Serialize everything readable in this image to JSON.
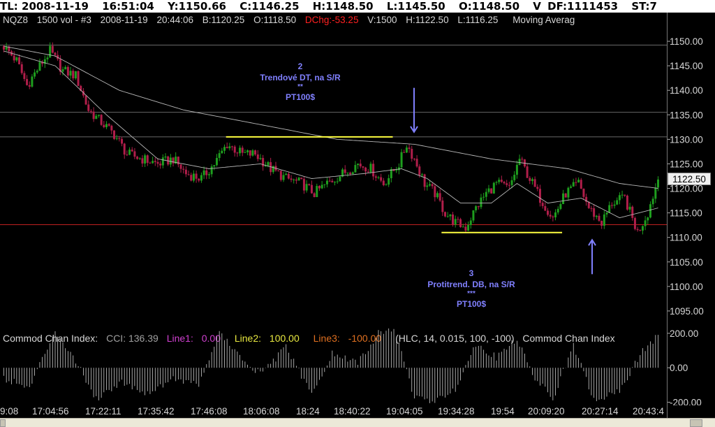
{
  "titlebar": {
    "tl": "TL: 2008-11-19",
    "time": "16:51:04",
    "y": "Y:1150.66",
    "c": "C:1146.25",
    "h": "H:1148.50",
    "l": "L:1145.50",
    "o": "O:1148.50",
    "v": "V",
    "df": "DF:1111453",
    "st": "ST:7"
  },
  "infobar": {
    "symbol": "NQZ8",
    "vol": "1500 vol - #3",
    "date": "2008-11-19",
    "time": "20:44:06",
    "bid": "B:1120.25",
    "open": "O:1118.50",
    "dchg": "DChg:-53.25",
    "volume": "V:1500",
    "high": "H:1122.50",
    "low": "L:1116.25",
    "indicator": "Moving Averag"
  },
  "price_tag": "1122.50",
  "notes": {
    "left": {
      "number": "2",
      "text": "Trendové DT, na S/R",
      "stars": "**",
      "target": "PT100$"
    },
    "right": {
      "number": "3",
      "text": "Protitrend. DB, na S/R",
      "stars": "***",
      "target": "PT100$"
    }
  },
  "cci_header": {
    "name": "Commod Chan Index:",
    "cci": "CCI: 136.39",
    "line1_label": "Line1:",
    "line1_val": "0.00",
    "line2_label": "Line2:",
    "line2_val": "100.00",
    "line3_label": "Line3:",
    "line3_val": "-100.00",
    "params": "(HLC, 14, 0.015, 100, -100)",
    "name_repeat": "Commod Chan Index"
  },
  "xaxis": [
    "9:08",
    "17:04:56",
    "17:22:11",
    "17:35:42",
    "17:46:08",
    "18:06:08",
    "18:24",
    "18:40:22",
    "19:04:05",
    "19:34:28",
    "19:54",
    "20:09:20",
    "20:27:14",
    "20:43:4"
  ],
  "colors": {
    "up": "#1e9e1e",
    "down": "#b01e4a",
    "ma": "#b8b8b8",
    "yellow": "#ffff40",
    "blue_arrow": "#8080ff",
    "red_line": "#c02020",
    "cci_line1": "#d040d0",
    "cci_line2": "#e8e840",
    "cci_line3": "#e07020"
  },
  "chart_data": [
    {
      "type": "candlestick",
      "ylim": [
        1092,
        1153
      ],
      "y_ticks": [
        1150,
        1145,
        1140,
        1135,
        1130,
        1125,
        1120,
        1115,
        1110,
        1105,
        1100,
        1095
      ],
      "y_tick_labels": [
        "1150.00",
        "1145.00",
        "1140.00",
        "1135.00",
        "1130.00",
        "1125.00",
        "1120.00",
        "1115.00",
        "1110.00",
        "1105.00",
        "1100.00",
        "1095.00"
      ],
      "levels": {
        "resistance": 1130.5,
        "support": 1111.0,
        "h_lines": [
          1149.2,
          1135.5,
          1130.5
        ],
        "red_line": 1112.6
      },
      "anchors": [
        [
          0,
          1149
        ],
        [
          5,
          1146
        ],
        [
          9,
          1141
        ],
        [
          14,
          1145
        ],
        [
          18,
          1148
        ],
        [
          23,
          1144
        ],
        [
          28,
          1143
        ],
        [
          33,
          1136
        ],
        [
          37,
          1134
        ],
        [
          43,
          1131
        ],
        [
          48,
          1127
        ],
        [
          54,
          1126
        ],
        [
          60,
          1125
        ],
        [
          66,
          1126
        ],
        [
          71,
          1123
        ],
        [
          77,
          1122
        ],
        [
          82,
          1125
        ],
        [
          87,
          1129
        ],
        [
          93,
          1127
        ],
        [
          98,
          1127
        ],
        [
          104,
          1124
        ],
        [
          110,
          1122
        ],
        [
          116,
          1121
        ],
        [
          121,
          1119
        ],
        [
          126,
          1121
        ],
        [
          132,
          1123
        ],
        [
          138,
          1125
        ],
        [
          143,
          1124
        ],
        [
          148,
          1121
        ],
        [
          154,
          1125
        ],
        [
          157,
          1129
        ],
        [
          160,
          1126
        ],
        [
          164,
          1121
        ],
        [
          168,
          1119
        ],
        [
          172,
          1115
        ],
        [
          176,
          1113
        ],
        [
          180,
          1112
        ],
        [
          184,
          1116
        ],
        [
          188,
          1119
        ],
        [
          192,
          1121
        ],
        [
          197,
          1120
        ],
        [
          201,
          1126
        ],
        [
          205,
          1122
        ],
        [
          209,
          1118
        ],
        [
          214,
          1114
        ],
        [
          219,
          1119
        ],
        [
          224,
          1121
        ],
        [
          228,
          1116
        ],
        [
          233,
          1113
        ],
        [
          237,
          1117
        ],
        [
          242,
          1118
        ],
        [
          247,
          1111
        ],
        [
          251,
          1115
        ],
        [
          255,
          1122
        ]
      ],
      "ma_fast": [
        [
          0,
          1148
        ],
        [
          20,
          1145
        ],
        [
          40,
          1135
        ],
        [
          60,
          1126
        ],
        [
          80,
          1124
        ],
        [
          100,
          1125
        ],
        [
          120,
          1122
        ],
        [
          140,
          1123
        ],
        [
          155,
          1124
        ],
        [
          165,
          1122
        ],
        [
          178,
          1117
        ],
        [
          190,
          1117
        ],
        [
          200,
          1121
        ],
        [
          212,
          1117
        ],
        [
          225,
          1118
        ],
        [
          240,
          1114
        ],
        [
          255,
          1116
        ]
      ],
      "ma_slow": [
        [
          0,
          1149
        ],
        [
          20,
          1147
        ],
        [
          45,
          1140
        ],
        [
          70,
          1136
        ],
        [
          100,
          1133
        ],
        [
          130,
          1130
        ],
        [
          160,
          1129
        ],
        [
          190,
          1126
        ],
        [
          220,
          1124
        ],
        [
          240,
          1121
        ],
        [
          255,
          1120
        ]
      ]
    },
    {
      "type": "bar",
      "title": "Commod Chan Index",
      "ylim": [
        -210,
        220
      ],
      "y_ticks": [
        200,
        0,
        -200
      ],
      "y_tick_labels": [
        "200.00",
        "0.00",
        "-200.00"
      ],
      "anchors": [
        [
          0,
          -60
        ],
        [
          10,
          -120
        ],
        [
          20,
          220
        ],
        [
          28,
          40
        ],
        [
          36,
          -180
        ],
        [
          46,
          -80
        ],
        [
          56,
          -150
        ],
        [
          66,
          -60
        ],
        [
          76,
          -100
        ],
        [
          84,
          210
        ],
        [
          92,
          60
        ],
        [
          100,
          -40
        ],
        [
          110,
          120
        ],
        [
          120,
          -160
        ],
        [
          128,
          80
        ],
        [
          138,
          30
        ],
        [
          146,
          200
        ],
        [
          152,
          230
        ],
        [
          160,
          -170
        ],
        [
          168,
          -200
        ],
        [
          176,
          -120
        ],
        [
          184,
          140
        ],
        [
          192,
          60
        ],
        [
          200,
          170
        ],
        [
          206,
          -40
        ],
        [
          214,
          -180
        ],
        [
          222,
          130
        ],
        [
          230,
          -190
        ],
        [
          240,
          -140
        ],
        [
          248,
          80
        ],
        [
          255,
          190
        ]
      ]
    }
  ]
}
